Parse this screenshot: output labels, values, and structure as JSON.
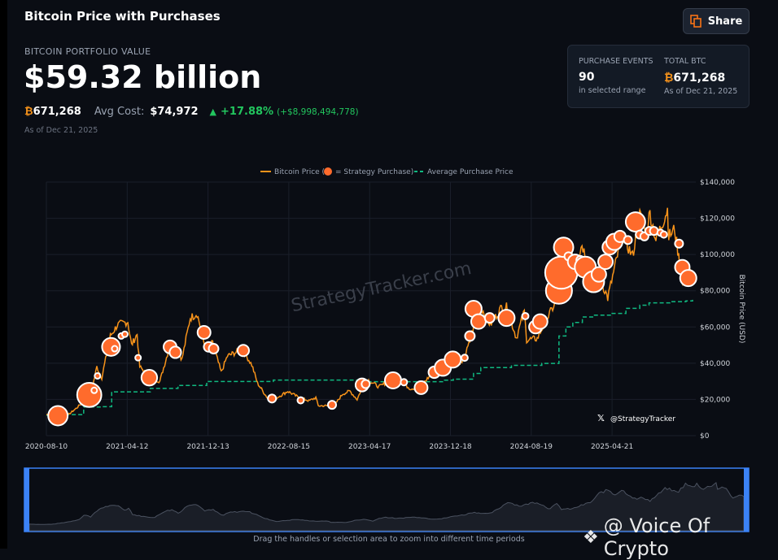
{
  "header": {
    "title": "Bitcoin Price with Purchases",
    "share_label": "Share"
  },
  "summary": {
    "label": "BITCOIN PORTFOLIO VALUE",
    "value": "$59.32 billion",
    "btc_symbol": "₿",
    "btc_amount": "671,268",
    "avg_cost_label": "Avg Cost:",
    "avg_cost": "$74,972",
    "change_pct": "+17.88%",
    "change_usd": "(+$8,998,494,778)",
    "as_of": "As of Dec 21, 2025"
  },
  "stats": {
    "events_label": "PURCHASE EVENTS",
    "events_value": "90",
    "events_sub": "in selected range",
    "total_label": "TOTAL BTC",
    "total_value": "671,268",
    "total_sub": "As of Dec 21, 2025"
  },
  "colors": {
    "price": "#f7931a",
    "purchase": "#ff6b2c",
    "avg": "#10b981",
    "up": "#22c55e",
    "handle": "#3b82f6"
  },
  "watermarks": {
    "site": "StrategyTracker.com",
    "handle": "@StrategyTracker",
    "overlay": "@ Voice Of Crypto"
  },
  "navigator": {
    "hint": "Drag the handles or selection area to zoom into different time periods"
  },
  "chart_data": {
    "type": "line",
    "legend": {
      "price": "Bitcoin Price (",
      "purchase": "= Strategy Purchase)",
      "avg": "Average Purchase Price",
      "placement": "top"
    },
    "ylabel": "Bitcoin Price (USD)",
    "ylim": [
      0,
      140000
    ],
    "yticks": [
      "$0",
      "$20,000",
      "$40,000",
      "$60,000",
      "$80,000",
      "$100,000",
      "$120,000",
      "$140,000"
    ],
    "xlim": [
      "2020-08-10",
      "2025-12-21"
    ],
    "xticks": [
      "2020-08-10",
      "2021-04-12",
      "2021-12-13",
      "2022-08-15",
      "2023-04-17",
      "2023-12-18",
      "2024-08-19",
      "2025-04-21"
    ],
    "price_k": [
      [
        "2020-08-10",
        11.7
      ],
      [
        "2020-09-15",
        10.6
      ],
      [
        "2020-10-15",
        11.5
      ],
      [
        "2020-11-10",
        15.3
      ],
      [
        "2020-12-01",
        19.0
      ],
      [
        "2020-12-25",
        24.5
      ],
      [
        "2021-01-10",
        38
      ],
      [
        "2021-01-25",
        32
      ],
      [
        "2021-02-20",
        55
      ],
      [
        "2021-03-13",
        61
      ],
      [
        "2021-04-14",
        63
      ],
      [
        "2021-04-25",
        50
      ],
      [
        "2021-05-12",
        56
      ],
      [
        "2021-05-20",
        38
      ],
      [
        "2021-06-22",
        32
      ],
      [
        "2021-07-20",
        30
      ],
      [
        "2021-08-15",
        47
      ],
      [
        "2021-09-05",
        51
      ],
      [
        "2021-09-25",
        42
      ],
      [
        "2021-10-20",
        65
      ],
      [
        "2021-11-10",
        67.5
      ],
      [
        "2021-12-04",
        49
      ],
      [
        "2021-12-27",
        51
      ],
      [
        "2022-01-22",
        35
      ],
      [
        "2022-02-10",
        44
      ],
      [
        "2022-03-28",
        47.5
      ],
      [
        "2022-04-25",
        39
      ],
      [
        "2022-05-12",
        29
      ],
      [
        "2022-06-18",
        19
      ],
      [
        "2022-07-10",
        21
      ],
      [
        "2022-08-12",
        24.5
      ],
      [
        "2022-09-10",
        21.5
      ],
      [
        "2022-10-15",
        19.2
      ],
      [
        "2022-11-05",
        21
      ],
      [
        "2022-11-12",
        16.5
      ],
      [
        "2022-12-30",
        16.5
      ],
      [
        "2023-01-25",
        23
      ],
      [
        "2023-02-16",
        24.6
      ],
      [
        "2023-03-10",
        20
      ],
      [
        "2023-03-30",
        28.5
      ],
      [
        "2023-04-14",
        30.5
      ],
      [
        "2023-05-15",
        27
      ],
      [
        "2023-06-23",
        30.7
      ],
      [
        "2023-07-15",
        30.4
      ],
      [
        "2023-08-18",
        26
      ],
      [
        "2023-09-15",
        26.5
      ],
      [
        "2023-10-24",
        34.5
      ],
      [
        "2023-11-15",
        37
      ],
      [
        "2023-12-08",
        44
      ],
      [
        "2023-12-31",
        42.3
      ],
      [
        "2024-01-22",
        39.5
      ],
      [
        "2024-02-15",
        52
      ],
      [
        "2024-03-14",
        73
      ],
      [
        "2024-04-17",
        61
      ],
      [
        "2024-05-21",
        71
      ],
      [
        "2024-06-05",
        71
      ],
      [
        "2024-07-05",
        54
      ],
      [
        "2024-07-29",
        68.5
      ],
      [
        "2024-08-05",
        53
      ],
      [
        "2024-09-06",
        53.5
      ],
      [
        "2024-10-01",
        63
      ],
      [
        "2024-10-29",
        72.5
      ],
      [
        "2024-11-22",
        99
      ],
      [
        "2024-12-17",
        106
      ],
      [
        "2024-12-30",
        92
      ],
      [
        "2025-01-20",
        106
      ],
      [
        "2025-02-28",
        80
      ],
      [
        "2025-03-20",
        85
      ],
      [
        "2025-04-08",
        76
      ],
      [
        "2025-05-22",
        111
      ],
      [
        "2025-06-22",
        99
      ],
      [
        "2025-07-14",
        122
      ],
      [
        "2025-08-02",
        113
      ],
      [
        "2025-08-14",
        123
      ],
      [
        "2025-09-01",
        108
      ],
      [
        "2025-10-06",
        125
      ],
      [
        "2025-10-10",
        110
      ],
      [
        "2025-10-28",
        114
      ],
      [
        "2025-11-21",
        83
      ],
      [
        "2025-12-05",
        92
      ],
      [
        "2025-12-21",
        88
      ]
    ],
    "avg_price_k": [
      [
        "2020-08-10",
        11.2
      ],
      [
        "2020-09-14",
        11.6
      ],
      [
        "2020-12-01",
        15.8
      ],
      [
        "2021-01-22",
        16.0
      ],
      [
        "2021-02-24",
        24.2
      ],
      [
        "2021-06-21",
        26.1
      ],
      [
        "2021-09-13",
        27.7
      ],
      [
        "2021-12-09",
        29.9
      ],
      [
        "2022-06-29",
        30.7
      ],
      [
        "2023-03-27",
        29.8
      ],
      [
        "2023-11-30",
        30.6
      ],
      [
        "2023-12-27",
        31.2
      ],
      [
        "2024-02-26",
        34.3
      ],
      [
        "2024-03-19",
        37.6
      ],
      [
        "2024-06-20",
        38.8
      ],
      [
        "2024-09-20",
        39.9
      ],
      [
        "2024-11-11",
        55.0
      ],
      [
        "2024-12-02",
        60.0
      ],
      [
        "2024-12-23",
        62.5
      ],
      [
        "2025-01-21",
        65.5
      ],
      [
        "2025-02-24",
        66.5
      ],
      [
        "2025-04-21",
        67.5
      ],
      [
        "2025-06-02",
        70.3
      ],
      [
        "2025-07-14",
        72.0
      ],
      [
        "2025-08-11",
        73.3
      ],
      [
        "2025-10-13",
        74.0
      ],
      [
        "2025-12-01",
        74.4
      ],
      [
        "2025-12-21",
        74.97
      ]
    ],
    "purchases": [
      [
        "2020-09-14",
        11,
        20000
      ],
      [
        "2020-12-18",
        22.5,
        31000
      ],
      [
        "2021-01-02",
        25,
        800
      ],
      [
        "2021-01-12",
        33,
        900
      ],
      [
        "2021-02-22",
        49,
        17000
      ],
      [
        "2021-03-05",
        48,
        1200
      ],
      [
        "2021-03-25",
        55,
        800
      ],
      [
        "2021-04-05",
        56,
        800
      ],
      [
        "2021-05-15",
        43,
        800
      ],
      [
        "2021-06-18",
        32,
        13000
      ],
      [
        "2021-08-20",
        49,
        8900
      ],
      [
        "2021-09-05",
        46,
        7000
      ],
      [
        "2021-12-01",
        57,
        8900
      ],
      [
        "2021-12-15",
        49,
        5000
      ],
      [
        "2021-12-30",
        48,
        5000
      ],
      [
        "2022-03-30",
        47,
        6900
      ],
      [
        "2022-06-25",
        20.5,
        3500
      ],
      [
        "2022-09-20",
        19.5,
        2200
      ],
      [
        "2022-12-24",
        17,
        3500
      ],
      [
        "2023-03-25",
        28,
        8900
      ],
      [
        "2023-04-05",
        28.5,
        3500
      ],
      [
        "2023-06-27",
        30.5,
        14000
      ],
      [
        "2023-07-30",
        29.5,
        2200
      ],
      [
        "2023-09-20",
        26.5,
        8900
      ],
      [
        "2023-10-30",
        35,
        7000
      ],
      [
        "2023-11-25",
        37.5,
        14000
      ],
      [
        "2023-12-25",
        42,
        14000
      ],
      [
        "2024-01-30",
        43,
        2200
      ],
      [
        "2024-02-15",
        55,
        5000
      ],
      [
        "2024-02-26",
        70,
        14000
      ],
      [
        "2024-03-12",
        63,
        11300
      ],
      [
        "2024-04-15",
        65,
        5000
      ],
      [
        "2024-06-05",
        65,
        14000
      ],
      [
        "2024-08-01",
        66,
        2200
      ],
      [
        "2024-09-01",
        60,
        8900
      ],
      [
        "2024-09-15",
        63,
        11300
      ],
      [
        "2024-11-11",
        80,
        36000
      ],
      [
        "2024-11-18",
        90,
        55000
      ],
      [
        "2024-11-25",
        104,
        20000
      ],
      [
        "2024-12-10",
        99,
        3500
      ],
      [
        "2024-12-30",
        96,
        11300
      ],
      [
        "2025-01-15",
        97,
        3500
      ],
      [
        "2025-01-30",
        93,
        23600
      ],
      [
        "2025-02-24",
        85,
        23600
      ],
      [
        "2025-03-12",
        89,
        11300
      ],
      [
        "2025-04-01",
        96,
        11300
      ],
      [
        "2025-04-14",
        104,
        11300
      ],
      [
        "2025-04-28",
        107,
        14000
      ],
      [
        "2025-05-15",
        110,
        6900
      ],
      [
        "2025-06-08",
        108,
        3500
      ],
      [
        "2025-07-01",
        118,
        20000
      ],
      [
        "2025-07-14",
        111,
        3500
      ],
      [
        "2025-07-28",
        110,
        3500
      ],
      [
        "2025-08-12",
        113,
        3500
      ],
      [
        "2025-08-26",
        113,
        3500
      ],
      [
        "2025-09-15",
        112,
        2200
      ],
      [
        "2025-09-25",
        111,
        2200
      ],
      [
        "2025-11-10",
        106,
        3500
      ],
      [
        "2025-11-20",
        93,
        11300
      ],
      [
        "2025-12-08",
        87,
        14000
      ]
    ]
  }
}
